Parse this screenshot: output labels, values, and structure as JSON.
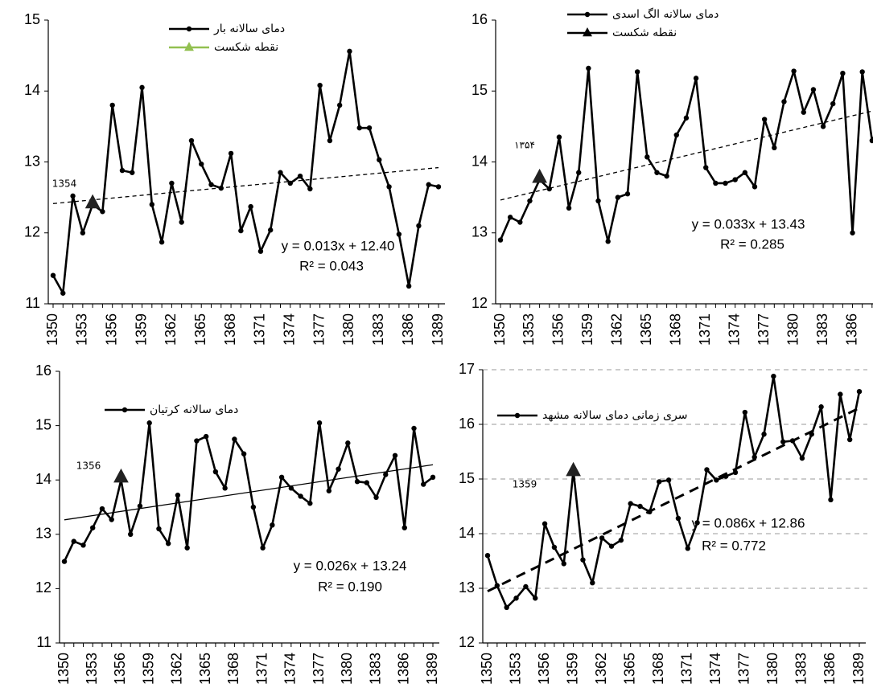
{
  "chart_data": [
    {
      "type": "line",
      "x": [
        1350,
        1351,
        1352,
        1353,
        1354,
        1355,
        1356,
        1357,
        1358,
        1359,
        1360,
        1361,
        1362,
        1363,
        1364,
        1365,
        1366,
        1367,
        1368,
        1369,
        1370,
        1371,
        1372,
        1373,
        1374,
        1375,
        1376,
        1377,
        1378,
        1379,
        1380,
        1381,
        1382,
        1383,
        1384,
        1385,
        1386,
        1387,
        1388,
        1389
      ],
      "xlim": [
        1350,
        1389
      ],
      "xticks": [
        1350,
        1353,
        1356,
        1359,
        1362,
        1365,
        1368,
        1371,
        1374,
        1377,
        1380,
        1383,
        1386,
        1389
      ],
      "ylim": [
        11,
        15
      ],
      "yticks": [
        11,
        12,
        13,
        14,
        15
      ],
      "grid": false,
      "series": [
        {
          "name": "دمای سالانه بار",
          "color": "#000000",
          "values": [
            11.4,
            11.15,
            12.52,
            12.0,
            12.4,
            12.3,
            13.8,
            12.88,
            12.85,
            14.05,
            12.4,
            11.87,
            12.7,
            12.15,
            13.3,
            12.97,
            12.68,
            12.63,
            13.12,
            12.03,
            12.37,
            11.74,
            12.04,
            12.85,
            12.7,
            12.8,
            12.62,
            14.08,
            13.3,
            13.8,
            14.56,
            13.48,
            13.48,
            13.03,
            12.65,
            11.98,
            11.25,
            12.1,
            12.68,
            12.65
          ]
        }
      ],
      "breakpoint": {
        "name": "نقطه شکست",
        "color": "#92c050",
        "x": 1354,
        "value": 12.42,
        "label": "1354"
      },
      "trendline": {
        "x": [
          1350,
          1389
        ],
        "values": [
          12.413,
          12.92
        ],
        "equation": "y = 0.013x + 12.40",
        "r2": "R² = 0.043"
      }
    },
    {
      "type": "line",
      "x": [
        1350,
        1351,
        1352,
        1353,
        1354,
        1355,
        1356,
        1357,
        1358,
        1359,
        1360,
        1361,
        1362,
        1363,
        1364,
        1365,
        1366,
        1367,
        1368,
        1369,
        1370,
        1371,
        1372,
        1373,
        1374,
        1375,
        1376,
        1377,
        1378,
        1379,
        1380,
        1381,
        1382,
        1383,
        1384,
        1385,
        1386,
        1387,
        1388,
        1389
      ],
      "xlim": [
        1350,
        1389
      ],
      "xticks": [
        1350,
        1353,
        1356,
        1359,
        1362,
        1365,
        1368,
        1371,
        1374,
        1377,
        1380,
        1383,
        1386,
        1389
      ],
      "ylim": [
        12,
        16
      ],
      "yticks": [
        12,
        13,
        14,
        15,
        16
      ],
      "grid": false,
      "series": [
        {
          "name": "دمای سالانه الگ اسدی",
          "color": "#000000",
          "values": [
            12.9,
            13.22,
            13.15,
            13.45,
            13.75,
            13.62,
            14.35,
            13.35,
            13.85,
            15.32,
            13.45,
            12.88,
            13.5,
            13.55,
            15.27,
            14.07,
            13.85,
            13.8,
            14.38,
            14.62,
            15.18,
            13.92,
            13.7,
            13.7,
            13.75,
            13.85,
            13.65,
            14.6,
            14.2,
            14.85,
            15.28,
            14.7,
            15.02,
            14.5,
            14.82,
            15.25,
            13.0,
            15.27,
            14.3,
            14.58
          ]
        }
      ],
      "breakpoint": {
        "name": "نقطه شکست",
        "color": "#000000",
        "x": 1354,
        "value": 13.78,
        "label": "۱۳۵۴"
      },
      "trendline": {
        "x": [
          1350,
          1389
        ],
        "values": [
          13.463,
          14.75
        ],
        "equation": "y = 0.033x + 13.43",
        "r2": "R² = 0.285"
      }
    },
    {
      "type": "line",
      "x": [
        1350,
        1351,
        1352,
        1353,
        1354,
        1355,
        1356,
        1357,
        1358,
        1359,
        1360,
        1361,
        1362,
        1363,
        1364,
        1365,
        1366,
        1367,
        1368,
        1369,
        1370,
        1371,
        1372,
        1373,
        1374,
        1375,
        1376,
        1377,
        1378,
        1379,
        1380,
        1381,
        1382,
        1383,
        1384,
        1385,
        1386,
        1387,
        1388,
        1389
      ],
      "xlim": [
        1350,
        1389
      ],
      "xticks": [
        1350,
        1353,
        1356,
        1359,
        1362,
        1365,
        1368,
        1371,
        1374,
        1377,
        1380,
        1383,
        1386,
        1389
      ],
      "ylim": [
        11,
        16
      ],
      "yticks": [
        11,
        12,
        13,
        14,
        15,
        16
      ],
      "grid": false,
      "series": [
        {
          "name": "دمای سالانه کرتیان",
          "color": "#000000",
          "values": [
            12.5,
            12.87,
            12.8,
            13.12,
            13.47,
            13.27,
            14.0,
            13.0,
            13.52,
            15.05,
            13.1,
            12.83,
            13.72,
            12.75,
            14.72,
            14.8,
            14.15,
            13.85,
            14.75,
            14.48,
            13.5,
            12.75,
            13.17,
            14.05,
            13.85,
            13.7,
            13.57,
            15.05,
            13.8,
            14.2,
            14.68,
            13.97,
            13.95,
            13.68,
            14.1,
            14.45,
            13.12,
            14.95,
            13.92,
            14.05
          ]
        }
      ],
      "breakpoint": {
        "x": 1356,
        "value": 14.05,
        "label": "1356"
      },
      "trendline": {
        "x": [
          1350,
          1389
        ],
        "values": [
          13.266,
          14.28
        ],
        "equation": "y = 0.026x + 13.24",
        "r2": "R² = 0.190"
      }
    },
    {
      "type": "line",
      "x": [
        1350,
        1351,
        1352,
        1353,
        1354,
        1355,
        1356,
        1357,
        1358,
        1359,
        1360,
        1361,
        1362,
        1363,
        1364,
        1365,
        1366,
        1367,
        1368,
        1369,
        1370,
        1371,
        1372,
        1373,
        1374,
        1375,
        1376,
        1377,
        1378,
        1379,
        1380,
        1381,
        1382,
        1383,
        1384,
        1385,
        1386,
        1387,
        1388,
        1389
      ],
      "xlim": [
        1350,
        1389
      ],
      "xticks": [
        1350,
        1353,
        1356,
        1359,
        1362,
        1365,
        1368,
        1371,
        1374,
        1377,
        1380,
        1383,
        1386,
        1389
      ],
      "ylim": [
        12,
        17
      ],
      "yticks": [
        12,
        13,
        14,
        15,
        16,
        17
      ],
      "grid": true,
      "series": [
        {
          "name": "سری زمانی دمای سالانه مشهد",
          "color": "#000000",
          "values": [
            13.6,
            13.05,
            12.65,
            12.82,
            13.03,
            12.82,
            14.18,
            13.75,
            13.45,
            15.15,
            13.52,
            13.1,
            13.92,
            13.77,
            13.88,
            14.55,
            14.5,
            14.4,
            14.95,
            14.98,
            14.28,
            13.73,
            14.2,
            15.17,
            14.98,
            15.05,
            15.12,
            16.22,
            15.4,
            15.82,
            16.88,
            15.68,
            15.7,
            15.38,
            15.82,
            16.32,
            14.62,
            16.55,
            15.72,
            16.6
          ]
        }
      ],
      "breakpoint": {
        "x": 1359,
        "value": 15.15,
        "label": "1359"
      },
      "trendline": {
        "x": [
          1350,
          1389
        ],
        "values": [
          12.946,
          16.3
        ],
        "equation": "y = 0.086x + 12.86",
        "r2": "R² = 0.772"
      }
    }
  ]
}
